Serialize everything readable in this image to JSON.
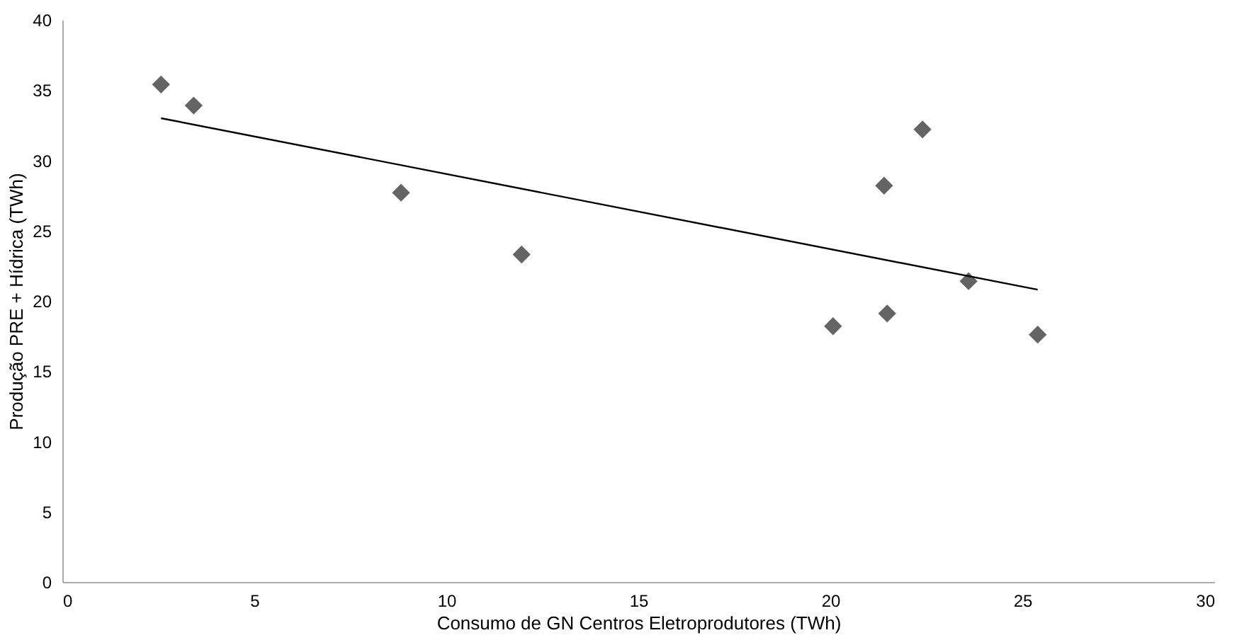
{
  "chart_data": {
    "type": "scatter",
    "xlabel": "Consumo de GN Centros Eletroprodutores (TWh)",
    "ylabel": "Produção PRE + Hídrica (TWh)",
    "xlim": [
      0,
      30
    ],
    "xticks": [
      0,
      5,
      10,
      15,
      20,
      25,
      30
    ],
    "ylim": [
      0,
      40
    ],
    "yticks": [
      0,
      5,
      10,
      15,
      20,
      25,
      30,
      35,
      40
    ],
    "grid": false,
    "marker": "diamond",
    "series": [
      {
        "color": "#646464",
        "x": [
          2.57,
          3.42,
          8.82,
          11.96,
          20.07,
          21.48,
          21.4,
          22.4,
          23.6,
          25.4
        ],
        "values": [
          35.4,
          33.9,
          27.7,
          23.3,
          18.2,
          19.1,
          28.2,
          32.2,
          21.4,
          17.6
        ]
      },
      {
        "type": "line",
        "color": "#000000",
        "marker": "none",
        "line_style": "solid",
        "x": [
          2.57,
          25.4
        ],
        "values": [
          33.0,
          20.8
        ]
      }
    ]
  }
}
